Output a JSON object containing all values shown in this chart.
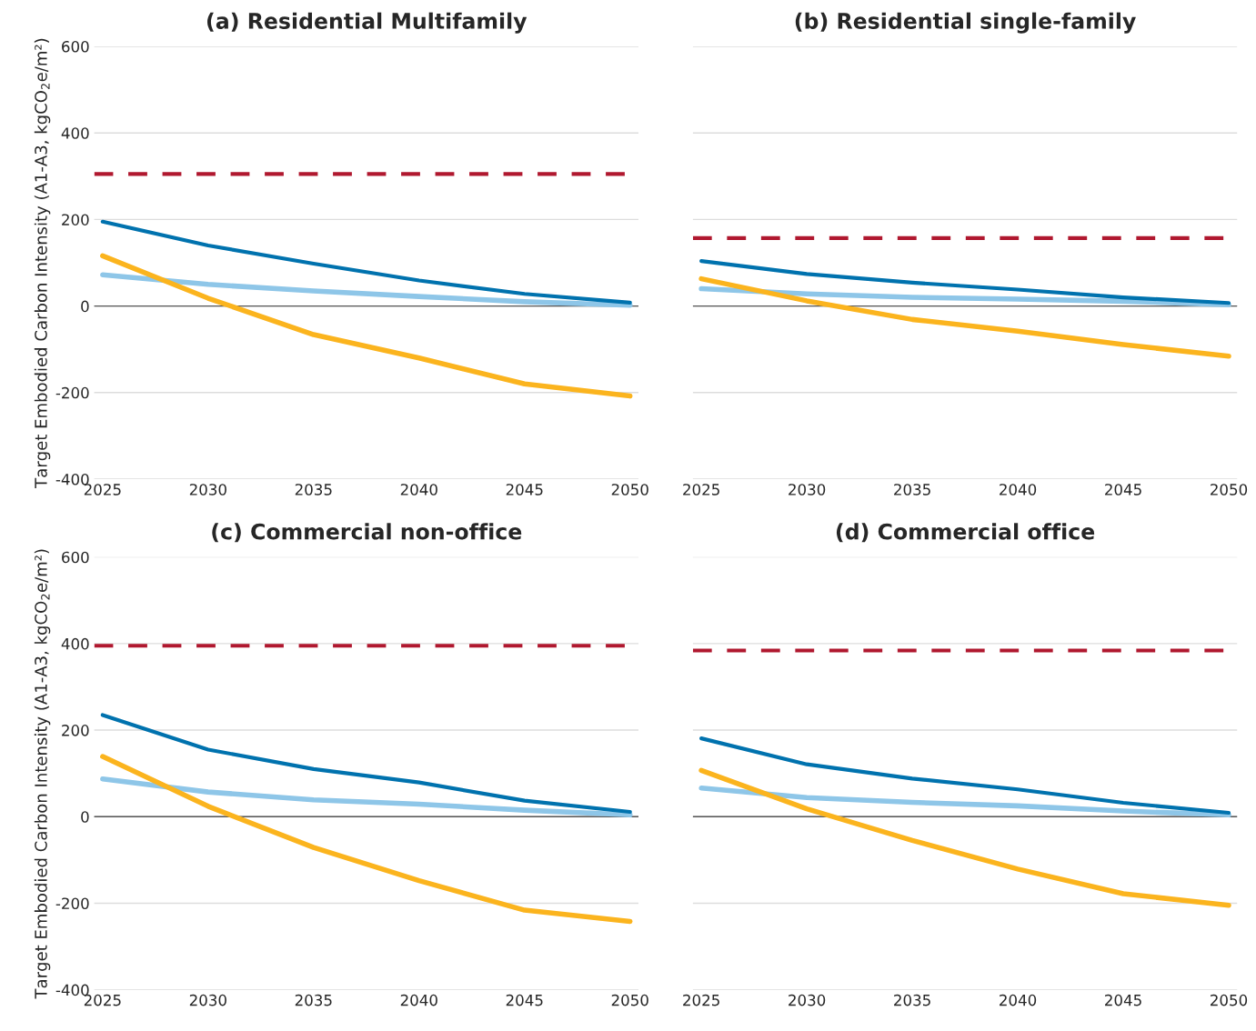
{
  "chart_data": [
    {
      "type": "line",
      "title": "(a) Residential Multifamily",
      "ylabel": "Target Embodied Carbon Intensity (A1-A3, kgCO$_{2}$e/m²)",
      "categories": [
        "2025",
        "2030",
        "2035",
        "2040",
        "2045",
        "2050"
      ],
      "ylim": [
        -400,
        600
      ],
      "yticks": [
        -400,
        -200,
        0,
        200,
        400,
        600
      ],
      "grid": "y",
      "marker": "none",
      "series": [
        {
          "color": "#8ec6e8",
          "values": [
            72,
            50,
            35,
            22,
            10,
            2
          ]
        },
        {
          "color": "#0072ae",
          "values": [
            195,
            140,
            98,
            59,
            28,
            8
          ]
        },
        {
          "color": "#fbb41e",
          "values": [
            116,
            18,
            -66,
            -120,
            -180,
            -208
          ]
        }
      ],
      "ref_lines": [
        {
          "axis": "y",
          "value": 0,
          "color": "#555555",
          "line_style": "solid"
        },
        {
          "axis": "y",
          "value": 305,
          "color": "#b0182f",
          "line_style": "dashed"
        }
      ]
    },
    {
      "type": "line",
      "title": "(b) Residential single-family",
      "categories": [
        "2025",
        "2030",
        "2035",
        "2040",
        "2045",
        "2050"
      ],
      "ylim": [
        -400,
        600
      ],
      "yticks": [
        -400,
        -200,
        0,
        200,
        400,
        600
      ],
      "grid": "y",
      "marker": "none",
      "tick_labels": "x",
      "series": [
        {
          "color": "#8ec6e8",
          "values": [
            40,
            28,
            20,
            16,
            11,
            3
          ]
        },
        {
          "color": "#0072ae",
          "values": [
            104,
            74,
            54,
            38,
            20,
            7
          ]
        },
        {
          "color": "#fbb41e",
          "values": [
            63,
            12,
            -31,
            -58,
            -89,
            -116
          ]
        }
      ],
      "ref_lines": [
        {
          "axis": "y",
          "value": 0,
          "color": "#555555",
          "line_style": "solid"
        },
        {
          "axis": "y",
          "value": 157,
          "color": "#b0182f",
          "line_style": "dashed"
        }
      ]
    },
    {
      "type": "line",
      "title": "(c) Commercial non-office",
      "ylabel": "Target Embodied Carbon Intensity (A1-A3, kgCO$_{2}$e/m²)",
      "categories": [
        "2025",
        "2030",
        "2035",
        "2040",
        "2045",
        "2050"
      ],
      "ylim": [
        -400,
        600
      ],
      "yticks": [
        -400,
        -200,
        0,
        200,
        400,
        600
      ],
      "grid": "y",
      "marker": "none",
      "series": [
        {
          "color": "#8ec6e8",
          "values": [
            87,
            57,
            39,
            29,
            15,
            4
          ]
        },
        {
          "color": "#0072ae",
          "values": [
            235,
            155,
            110,
            79,
            37,
            11
          ]
        },
        {
          "color": "#fbb41e",
          "values": [
            139,
            24,
            -71,
            -148,
            -216,
            -242
          ]
        }
      ],
      "ref_lines": [
        {
          "axis": "y",
          "value": 0,
          "color": "#555555",
          "line_style": "solid"
        },
        {
          "axis": "y",
          "value": 395,
          "color": "#b0182f",
          "line_style": "dashed"
        }
      ]
    },
    {
      "type": "line",
      "title": "(d) Commercial office",
      "categories": [
        "2025",
        "2030",
        "2035",
        "2040",
        "2045",
        "2050"
      ],
      "ylim": [
        -400,
        600
      ],
      "yticks": [
        -400,
        -200,
        0,
        200,
        400,
        600
      ],
      "grid": "y",
      "marker": "none",
      "tick_labels": "x",
      "series": [
        {
          "color": "#8ec6e8",
          "values": [
            66,
            44,
            33,
            25,
            13,
            4
          ]
        },
        {
          "color": "#0072ae",
          "values": [
            181,
            121,
            88,
            63,
            32,
            9
          ]
        },
        {
          "color": "#fbb41e",
          "values": [
            107,
            18,
            -55,
            -121,
            -178,
            -205
          ]
        }
      ],
      "ref_lines": [
        {
          "axis": "y",
          "value": 0,
          "color": "#555555",
          "line_style": "solid"
        },
        {
          "axis": "y",
          "value": 384,
          "color": "#b0182f",
          "line_style": "dashed"
        }
      ]
    }
  ]
}
